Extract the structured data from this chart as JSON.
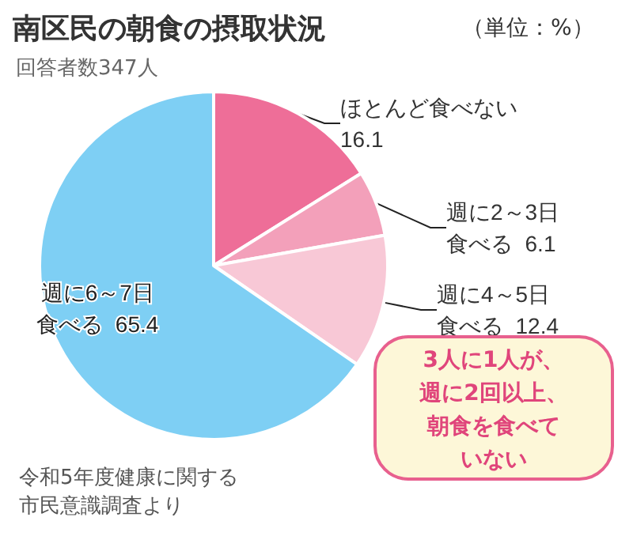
{
  "chart_data": {
    "type": "pie",
    "title": "南区民の朝食の摂取状況",
    "subtitle": "回答者数347人",
    "categories": [
      "ほとんど食べない",
      "週に2～3日食べる",
      "週に4～5日食べる",
      "週に6～7日食べる"
    ],
    "values": [
      16.1,
      6.1,
      12.4,
      65.4
    ],
    "colors": [
      "#ee6e98",
      "#f3a0ba",
      "#f8c8d6",
      "#7ecff4"
    ],
    "data_labels": true,
    "legend": false,
    "annotations": [
      "（単位：%）",
      "3人に1人が、週に2回以上、朝食を食べていない",
      "令和5年度健康に関する市民意識調査より"
    ]
  }
}
